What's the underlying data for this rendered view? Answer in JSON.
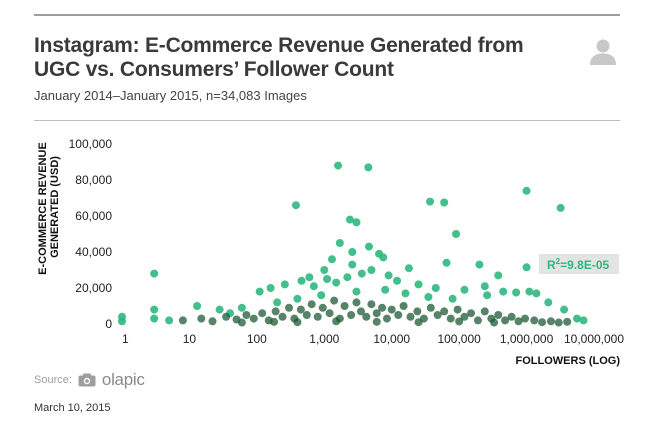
{
  "header": {
    "title": "Instagram: E-Commerce Revenue Generated from UGC vs. Consumers’ Follower Count",
    "subtitle": "January 2014–January 2015, n=34,083 Images",
    "icon": "user-avatar-icon"
  },
  "footer": {
    "source_label": "Source:",
    "source_brand": "olapic",
    "source_icon": "camera-icon",
    "date": "March 10, 2015"
  },
  "colors": {
    "point": "#2db87d",
    "point_dense": "#1f5a35",
    "r2_box": "#e4e4e4",
    "rule": "#bdbdbd"
  },
  "chart_data": {
    "type": "scatter",
    "title": "Instagram: E-Commerce Revenue Generated from UGC vs. Consumers’ Follower Count",
    "subtitle": "January 2014–January 2015, n=34,083 Images",
    "xlabel": "FOLLOWERS (LOG)",
    "ylabel": "E-COMMERCE REVENUE GENERATED (USD)",
    "xscale": "log",
    "xlim": [
      1,
      10000000
    ],
    "ylim": [
      0,
      100000
    ],
    "x_ticks": [
      1,
      10,
      100,
      1000,
      10000,
      100000,
      1000000,
      10000000
    ],
    "x_tick_labels": [
      "1",
      "10",
      "100",
      "1,000",
      "10,000",
      "100,000",
      "1,000,000",
      "10,000,000"
    ],
    "y_ticks": [
      0,
      20000,
      40000,
      60000,
      80000,
      100000
    ],
    "y_tick_labels": [
      "0",
      "20,000",
      "40,000",
      "60,000",
      "80,000",
      "100,000"
    ],
    "annotation": "R²=9.8E-05",
    "annotation_parts": {
      "base": "R",
      "sup": "2",
      "rest": "=9.8E-05"
    },
    "grid": false,
    "points": [
      {
        "x": 1600,
        "y": 88000
      },
      {
        "x": 4500,
        "y": 87000
      },
      {
        "x": 1000000,
        "y": 74000
      },
      {
        "x": 380,
        "y": 66000
      },
      {
        "x": 37000,
        "y": 68000
      },
      {
        "x": 60000,
        "y": 67500
      },
      {
        "x": 3200000,
        "y": 64500
      },
      {
        "x": 2400,
        "y": 58000
      },
      {
        "x": 3000,
        "y": 56500
      },
      {
        "x": 90000,
        "y": 50000
      },
      {
        "x": 1700,
        "y": 45000
      },
      {
        "x": 4600,
        "y": 43000
      },
      {
        "x": 2600,
        "y": 40000
      },
      {
        "x": 6500,
        "y": 39000
      },
      {
        "x": 7500,
        "y": 37000
      },
      {
        "x": 1300,
        "y": 36000
      },
      {
        "x": 65000,
        "y": 34000
      },
      {
        "x": 200000,
        "y": 33000
      },
      {
        "x": 1000000,
        "y": 31500
      },
      {
        "x": 2600,
        "y": 33000
      },
      {
        "x": 3,
        "y": 28000
      },
      {
        "x": 18000,
        "y": 31000
      },
      {
        "x": 5000,
        "y": 30000
      },
      {
        "x": 1000,
        "y": 30000
      },
      {
        "x": 380000,
        "y": 27000
      },
      {
        "x": 3600,
        "y": 28000
      },
      {
        "x": 600,
        "y": 26000
      },
      {
        "x": 9000,
        "y": 27000
      },
      {
        "x": 3,
        "y": 8000
      },
      {
        "x": 1,
        "y": 4000
      },
      {
        "x": 3,
        "y": 3000
      },
      {
        "x": 5,
        "y": 2000
      },
      {
        "x": 13,
        "y": 10000
      },
      {
        "x": 28,
        "y": 8000
      },
      {
        "x": 110,
        "y": 18000
      },
      {
        "x": 160,
        "y": 20000
      },
      {
        "x": 260,
        "y": 22000
      },
      {
        "x": 460,
        "y": 24000
      },
      {
        "x": 700,
        "y": 21000
      },
      {
        "x": 1100,
        "y": 25000
      },
      {
        "x": 1500,
        "y": 23000
      },
      {
        "x": 2200,
        "y": 26000
      },
      {
        "x": 12000,
        "y": 24000
      },
      {
        "x": 25000,
        "y": 22000
      },
      {
        "x": 45000,
        "y": 20000
      },
      {
        "x": 120000,
        "y": 19000
      },
      {
        "x": 240000,
        "y": 21000
      },
      {
        "x": 450000,
        "y": 18000
      },
      {
        "x": 700000,
        "y": 17500
      },
      {
        "x": 1400000,
        "y": 17000
      },
      {
        "x": 2100000,
        "y": 12000
      },
      {
        "x": 3600000,
        "y": 8000
      },
      {
        "x": 5600000,
        "y": 3000
      },
      {
        "x": 7000000,
        "y": 2000
      },
      {
        "x": 1100000,
        "y": 18000
      },
      {
        "x": 260000,
        "y": 16000
      },
      {
        "x": 80000,
        "y": 14000
      },
      {
        "x": 35000,
        "y": 15000
      },
      {
        "x": 16000,
        "y": 17000
      },
      {
        "x": 8000,
        "y": 19000
      },
      {
        "x": 3000,
        "y": 18000
      },
      {
        "x": 900,
        "y": 16000
      },
      {
        "x": 400,
        "y": 14000
      },
      {
        "x": 200,
        "y": 12000
      },
      {
        "x": 60,
        "y": 9000
      },
      {
        "x": 40,
        "y": 6000
      },
      {
        "x": 1,
        "y": 1500
      }
    ],
    "dense_points": [
      {
        "x": 8,
        "y": 2000
      },
      {
        "x": 15,
        "y": 3000
      },
      {
        "x": 22,
        "y": 1500
      },
      {
        "x": 35,
        "y": 4000
      },
      {
        "x": 50,
        "y": 2500
      },
      {
        "x": 70,
        "y": 5000
      },
      {
        "x": 90,
        "y": 3000
      },
      {
        "x": 120,
        "y": 6000
      },
      {
        "x": 150,
        "y": 2000
      },
      {
        "x": 190,
        "y": 7000
      },
      {
        "x": 240,
        "y": 4000
      },
      {
        "x": 300,
        "y": 9000
      },
      {
        "x": 360,
        "y": 3000
      },
      {
        "x": 450,
        "y": 8000
      },
      {
        "x": 550,
        "y": 5000
      },
      {
        "x": 650,
        "y": 11000
      },
      {
        "x": 800,
        "y": 4000
      },
      {
        "x": 950,
        "y": 9000
      },
      {
        "x": 1200,
        "y": 6000
      },
      {
        "x": 1400,
        "y": 13000
      },
      {
        "x": 1700,
        "y": 3000
      },
      {
        "x": 2000,
        "y": 10000
      },
      {
        "x": 2500,
        "y": 5000
      },
      {
        "x": 3000,
        "y": 12000
      },
      {
        "x": 3500,
        "y": 7000
      },
      {
        "x": 4200,
        "y": 4000
      },
      {
        "x": 5000,
        "y": 11000
      },
      {
        "x": 6000,
        "y": 6000
      },
      {
        "x": 7200,
        "y": 9000
      },
      {
        "x": 8500,
        "y": 3000
      },
      {
        "x": 10000,
        "y": 8000
      },
      {
        "x": 12500,
        "y": 5000
      },
      {
        "x": 15000,
        "y": 10000
      },
      {
        "x": 19000,
        "y": 4000
      },
      {
        "x": 24000,
        "y": 7000
      },
      {
        "x": 30000,
        "y": 3000
      },
      {
        "x": 38000,
        "y": 9000
      },
      {
        "x": 48000,
        "y": 5000
      },
      {
        "x": 60000,
        "y": 7000
      },
      {
        "x": 75000,
        "y": 3000
      },
      {
        "x": 95000,
        "y": 8000
      },
      {
        "x": 120000,
        "y": 4000
      },
      {
        "x": 150000,
        "y": 6000
      },
      {
        "x": 190000,
        "y": 2000
      },
      {
        "x": 240000,
        "y": 7000
      },
      {
        "x": 300000,
        "y": 3000
      },
      {
        "x": 380000,
        "y": 5000
      },
      {
        "x": 480000,
        "y": 2000
      },
      {
        "x": 600000,
        "y": 4000
      },
      {
        "x": 760000,
        "y": 1500
      },
      {
        "x": 950000,
        "y": 3000
      },
      {
        "x": 1300000,
        "y": 2000
      },
      {
        "x": 1700000,
        "y": 1000
      },
      {
        "x": 2300000,
        "y": 1500
      },
      {
        "x": 3000000,
        "y": 800
      },
      {
        "x": 4000000,
        "y": 1200
      },
      {
        "x": 400,
        "y": 1000
      },
      {
        "x": 1500,
        "y": 1500
      },
      {
        "x": 6000,
        "y": 1200
      },
      {
        "x": 25000,
        "y": 1000
      },
      {
        "x": 100000,
        "y": 1400
      },
      {
        "x": 330000,
        "y": 800
      },
      {
        "x": 180,
        "y": 1200
      },
      {
        "x": 60,
        "y": 800
      }
    ]
  }
}
